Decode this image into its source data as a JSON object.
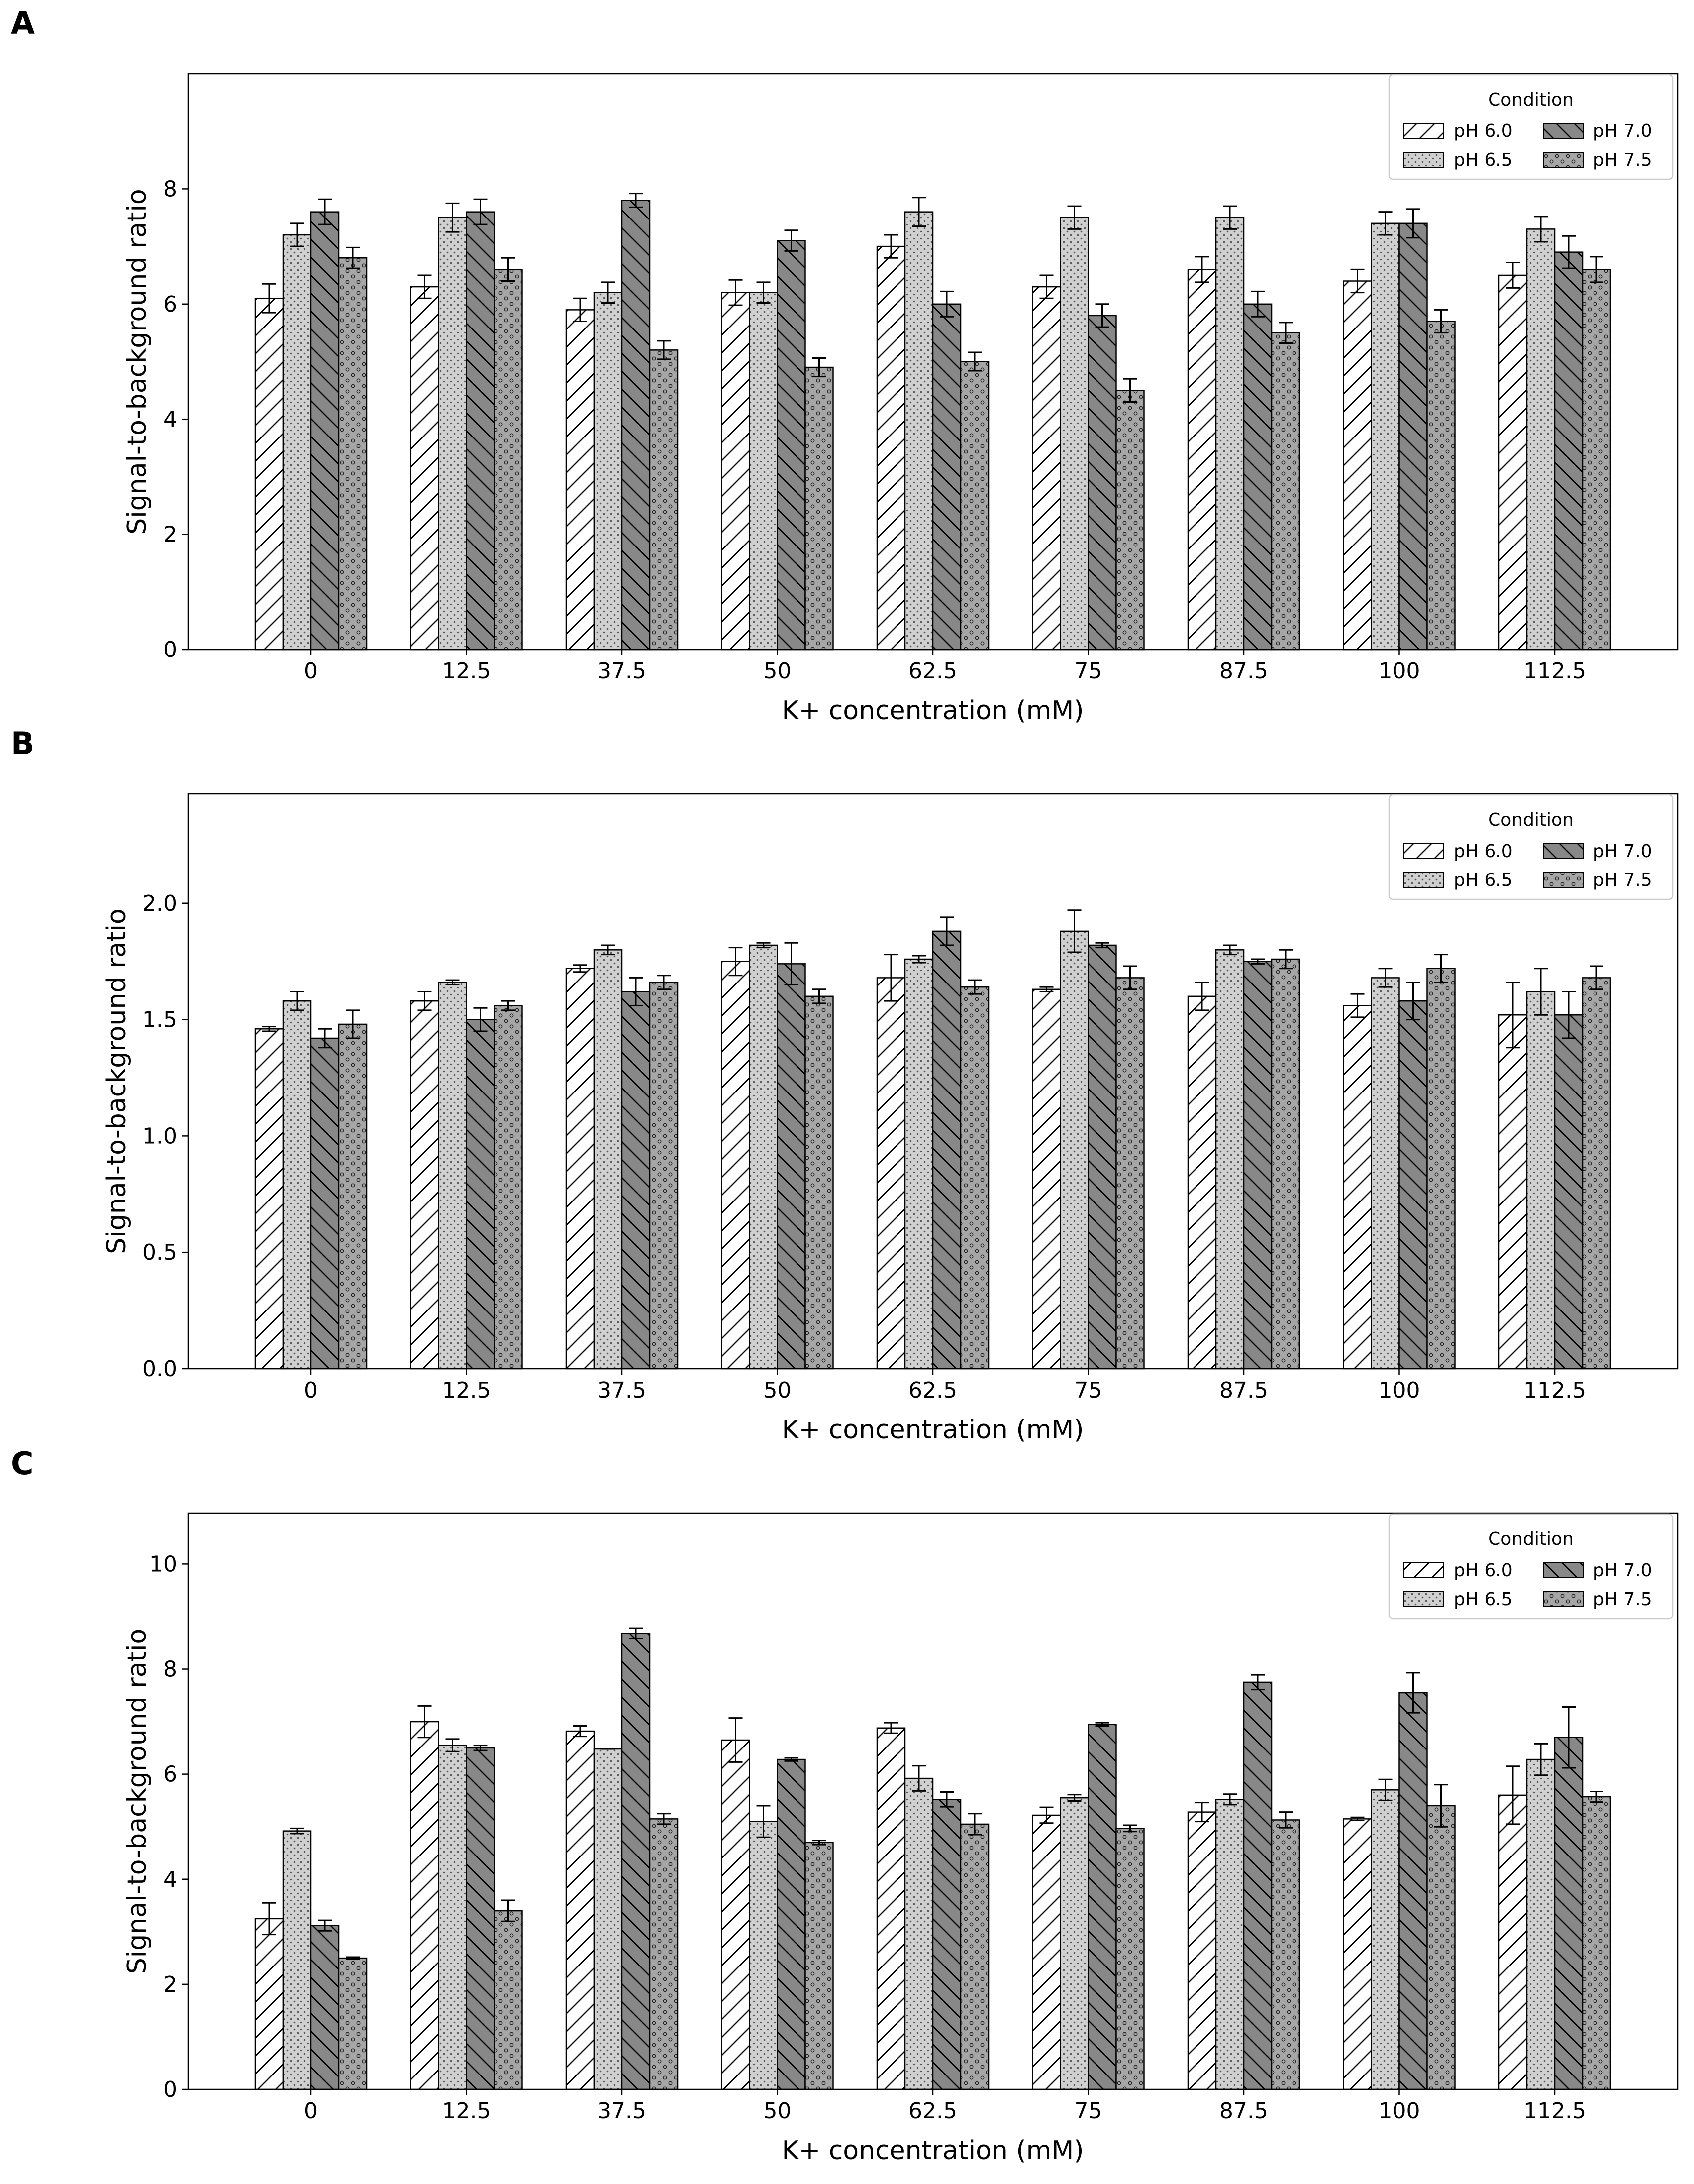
{
  "panel_labels": [
    "A",
    "B",
    "C"
  ],
  "legend_title": "Condition",
  "chart_data": [
    {
      "type": "bar",
      "panel": "A",
      "xlabel": "K+ concentration (mM)",
      "ylabel": "Signal-to-background ratio",
      "categories": [
        "0",
        "12.5",
        "37.5",
        "50",
        "62.5",
        "75",
        "87.5",
        "100",
        "112.5"
      ],
      "ylim": [
        0,
        10
      ],
      "yticks": [
        0,
        2,
        4,
        6,
        8
      ],
      "ytick_labels": [
        "0",
        "2",
        "4",
        "6",
        "8"
      ],
      "grid": false,
      "legend": "top-right",
      "legend_title": "Condition",
      "series": [
        {
          "name": "pH 6.0",
          "values": [
            6.1,
            6.3,
            5.9,
            6.2,
            7.0,
            6.3,
            6.6,
            6.4,
            6.5
          ],
          "errors": [
            0.25,
            0.2,
            0.2,
            0.22,
            0.2,
            0.2,
            0.22,
            0.2,
            0.22
          ]
        },
        {
          "name": "pH 6.5",
          "values": [
            7.2,
            7.5,
            6.2,
            6.2,
            7.6,
            7.5,
            7.5,
            7.4,
            7.3
          ],
          "errors": [
            0.2,
            0.25,
            0.18,
            0.18,
            0.25,
            0.2,
            0.2,
            0.2,
            0.22
          ]
        },
        {
          "name": "pH 7.0",
          "values": [
            7.6,
            7.6,
            7.8,
            7.1,
            6.0,
            5.8,
            6.0,
            7.4,
            6.9
          ],
          "errors": [
            0.22,
            0.22,
            0.12,
            0.18,
            0.22,
            0.2,
            0.22,
            0.25,
            0.28
          ]
        },
        {
          "name": "pH 7.5",
          "values": [
            6.8,
            6.6,
            5.2,
            4.9,
            5.0,
            4.5,
            5.5,
            5.7,
            6.6
          ],
          "errors": [
            0.18,
            0.2,
            0.16,
            0.16,
            0.16,
            0.2,
            0.18,
            0.2,
            0.22
          ]
        }
      ]
    },
    {
      "type": "bar",
      "panel": "B",
      "xlabel": "K+ concentration (mM)",
      "ylabel": "Signal-to-background ratio",
      "categories": [
        "0",
        "12.5",
        "37.5",
        "50",
        "62.5",
        "75",
        "87.5",
        "100",
        "112.5"
      ],
      "ylim": [
        0,
        2.47
      ],
      "yticks": [
        0,
        0.5,
        1.0,
        1.5,
        2.0
      ],
      "ytick_labels": [
        "0.0",
        "0.5",
        "1.0",
        "1.5",
        "2.0"
      ],
      "grid": false,
      "legend": "top-right",
      "legend_title": "Condition",
      "series": [
        {
          "name": "pH 6.0",
          "values": [
            1.46,
            1.58,
            1.72,
            1.75,
            1.68,
            1.63,
            1.6,
            1.56,
            1.52
          ],
          "errors": [
            0.01,
            0.04,
            0.015,
            0.06,
            0.1,
            0.01,
            0.06,
            0.05,
            0.14
          ]
        },
        {
          "name": "pH 6.5",
          "values": [
            1.58,
            1.66,
            1.8,
            1.82,
            1.76,
            1.88,
            1.8,
            1.68,
            1.62
          ],
          "errors": [
            0.04,
            0.01,
            0.02,
            0.01,
            0.015,
            0.09,
            0.02,
            0.04,
            0.1
          ]
        },
        {
          "name": "pH 7.0",
          "values": [
            1.42,
            1.5,
            1.62,
            1.74,
            1.88,
            1.82,
            1.75,
            1.58,
            1.52
          ],
          "errors": [
            0.04,
            0.05,
            0.06,
            0.09,
            0.06,
            0.01,
            0.01,
            0.08,
            0.1
          ]
        },
        {
          "name": "pH 7.5",
          "values": [
            1.48,
            1.56,
            1.66,
            1.6,
            1.64,
            1.68,
            1.76,
            1.72,
            1.68
          ],
          "errors": [
            0.06,
            0.02,
            0.03,
            0.03,
            0.03,
            0.05,
            0.04,
            0.06,
            0.05
          ]
        }
      ]
    },
    {
      "type": "bar",
      "panel": "C",
      "xlabel": "K+ concentration (mM)",
      "ylabel": "Signal-to-background ratio",
      "categories": [
        "0",
        "12.5",
        "37.5",
        "50",
        "62.5",
        "75",
        "87.5",
        "100",
        "112.5"
      ],
      "ylim": [
        0,
        10.97
      ],
      "yticks": [
        0,
        2,
        4,
        6,
        8,
        10
      ],
      "ytick_labels": [
        "0",
        "2",
        "4",
        "6",
        "8",
        "10"
      ],
      "grid": false,
      "legend": "top-right",
      "legend_title": "Condition",
      "series": [
        {
          "name": "pH 6.0",
          "values": [
            3.25,
            7.0,
            6.82,
            6.65,
            6.88,
            5.22,
            5.28,
            5.15,
            5.6
          ],
          "errors": [
            0.3,
            0.3,
            0.1,
            0.42,
            0.1,
            0.15,
            0.18,
            0.03,
            0.55
          ]
        },
        {
          "name": "pH 6.5",
          "values": [
            4.92,
            6.55,
            6.48,
            5.1,
            5.92,
            5.55,
            5.52,
            5.7,
            6.28
          ],
          "errors": [
            0.05,
            0.12,
            0.0,
            0.3,
            0.24,
            0.06,
            0.1,
            0.2,
            0.3
          ]
        },
        {
          "name": "pH 7.0",
          "values": [
            3.12,
            6.5,
            8.68,
            6.28,
            5.52,
            6.95,
            7.75,
            7.55,
            6.7
          ],
          "errors": [
            0.1,
            0.05,
            0.1,
            0.03,
            0.14,
            0.03,
            0.14,
            0.38,
            0.58
          ]
        },
        {
          "name": "pH 7.5",
          "values": [
            2.5,
            3.4,
            5.15,
            4.7,
            5.05,
            4.97,
            5.13,
            5.4,
            5.57
          ],
          "errors": [
            0.02,
            0.2,
            0.1,
            0.04,
            0.2,
            0.06,
            0.15,
            0.4,
            0.1
          ]
        }
      ]
    }
  ],
  "colors": {
    "pH 6.0": "#ffffff",
    "pH 6.5": "#d0d0d0",
    "pH 7.0": "#888888",
    "pH 7.5": "#a6a6a6"
  },
  "patterns": {
    "pH 6.0": "diagonal-forward",
    "pH 6.5": "fine-dots",
    "pH 7.0": "diagonal-backward",
    "pH 7.5": "circles"
  }
}
